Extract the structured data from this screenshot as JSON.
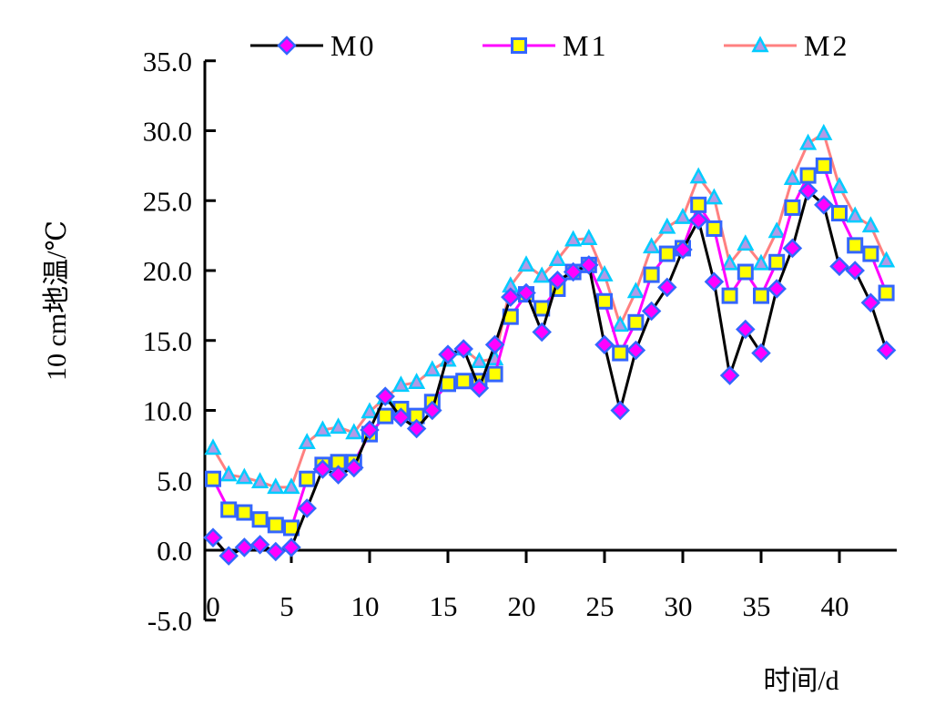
{
  "chart_data": {
    "type": "line",
    "title": "",
    "xlabel": "时间/d",
    "ylabel": "10 cm地温/℃",
    "xlim": [
      0,
      44
    ],
    "ylim": [
      -5,
      35
    ],
    "xticks": [
      "0",
      "5",
      "10",
      "15",
      "20",
      "25",
      "30",
      "35",
      "40"
    ],
    "xtick_values": [
      0,
      5,
      10,
      15,
      20,
      25,
      30,
      35,
      40
    ],
    "yticks": [
      "-5.0",
      "0.0",
      "5.0",
      "10.0",
      "15.0",
      "20.0",
      "25.0",
      "30.0",
      "35.0"
    ],
    "ytick_values": [
      -5,
      0,
      5,
      10,
      15,
      20,
      25,
      30,
      35
    ],
    "grid": false,
    "legend_position": "top",
    "x": [
      0,
      1,
      2,
      3,
      4,
      5,
      6,
      7,
      8,
      9,
      10,
      11,
      12,
      13,
      14,
      15,
      16,
      17,
      18,
      19,
      20,
      21,
      22,
      23,
      24,
      25,
      26,
      27,
      28,
      29,
      30,
      31,
      32,
      33,
      34,
      35,
      36,
      37,
      38,
      39,
      40,
      41,
      42,
      43
    ],
    "series": [
      {
        "name": "M0",
        "line_color": "#000000",
        "marker": "diamond",
        "marker_fill": "#ff00ff",
        "marker_stroke": "#3366ff",
        "values": [
          0.9,
          -0.4,
          0.2,
          0.4,
          -0.1,
          0.2,
          3.0,
          5.8,
          5.4,
          5.9,
          8.6,
          11.0,
          9.5,
          8.7,
          10.0,
          14.0,
          14.4,
          11.6,
          14.7,
          18.1,
          18.4,
          15.6,
          19.3,
          19.9,
          20.4,
          14.7,
          10.0,
          14.3,
          17.1,
          18.8,
          21.5,
          23.6,
          19.2,
          12.5,
          15.8,
          14.1,
          18.7,
          21.6,
          25.7,
          24.7,
          20.3,
          20.0,
          17.7,
          14.3
        ]
      },
      {
        "name": "M1",
        "line_color": "#ff00ff",
        "marker": "square",
        "marker_fill": "#ffff00",
        "marker_stroke": "#3366ff",
        "values": [
          5.1,
          2.9,
          2.7,
          2.2,
          1.8,
          1.6,
          5.1,
          6.1,
          6.3,
          6.3,
          8.3,
          9.6,
          10.1,
          9.6,
          10.6,
          11.9,
          12.1,
          12.1,
          12.6,
          16.7,
          18.3,
          17.3,
          18.7,
          19.9,
          20.4,
          17.8,
          14.1,
          16.3,
          19.7,
          21.2,
          21.6,
          24.7,
          23.0,
          18.2,
          19.9,
          18.2,
          20.6,
          24.5,
          26.8,
          27.5,
          24.1,
          21.8,
          21.2,
          18.4
        ]
      },
      {
        "name": "M2",
        "line_color": "#ff8080",
        "marker": "triangle",
        "marker_fill": "#b399e6",
        "marker_stroke": "#00ccff",
        "values": [
          7.3,
          5.4,
          5.2,
          4.9,
          4.5,
          4.5,
          7.7,
          8.6,
          8.8,
          8.4,
          9.9,
          10.9,
          11.8,
          12.0,
          12.9,
          13.6,
          14.4,
          13.5,
          13.7,
          18.9,
          20.4,
          19.6,
          20.8,
          22.2,
          22.3,
          19.7,
          16.1,
          18.5,
          21.7,
          23.1,
          23.8,
          26.7,
          25.2,
          20.5,
          21.9,
          20.5,
          22.8,
          26.6,
          29.1,
          29.8,
          26.0,
          23.9,
          23.2,
          20.7
        ]
      }
    ]
  }
}
